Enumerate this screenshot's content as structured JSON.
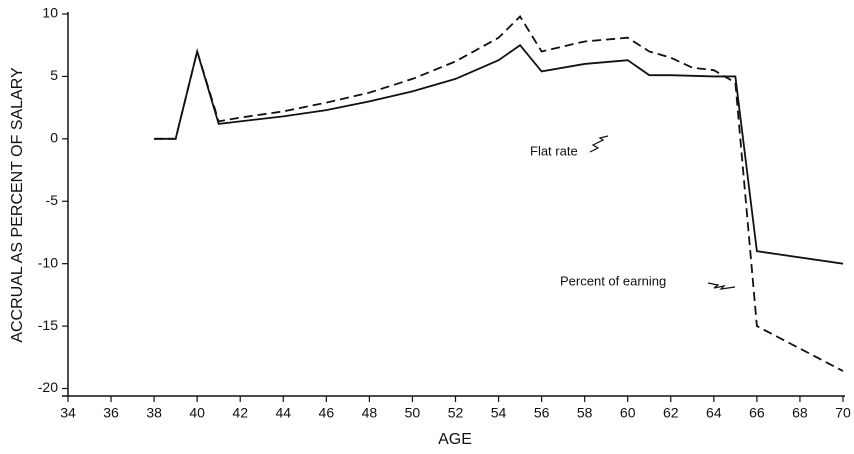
{
  "chart_data": {
    "type": "line",
    "x_label": "AGE",
    "y_label": "ACCRUAL AS PERCENT OF SALARY",
    "x": [
      38,
      39,
      40,
      41,
      42,
      44,
      46,
      48,
      50,
      52,
      54,
      55,
      56,
      58,
      60,
      61,
      62,
      63,
      64,
      65,
      66,
      70
    ],
    "series": [
      {
        "name": "Flat rate",
        "color": "#111111",
        "dash": false,
        "values": [
          0,
          0,
          7,
          1.2,
          1.4,
          1.8,
          2.3,
          3,
          3.8,
          4.8,
          6.3,
          7.5,
          5.4,
          6,
          6.3,
          5.1,
          5.1,
          5.05,
          5,
          5,
          -9,
          -10
        ]
      },
      {
        "name": "Percent of earning",
        "color": "#111111",
        "dash": true,
        "values": [
          0,
          0,
          7,
          1.4,
          1.7,
          2.2,
          2.9,
          3.7,
          4.8,
          6.2,
          8.1,
          9.8,
          7,
          7.8,
          8.1,
          7,
          6.5,
          5.7,
          5.5,
          4.5,
          -15,
          -18.6
        ]
      }
    ],
    "xlim": [
      34,
      70
    ],
    "xticks": [
      34,
      36,
      38,
      40,
      42,
      44,
      46,
      48,
      50,
      52,
      54,
      56,
      58,
      60,
      62,
      64,
      66,
      68,
      70
    ],
    "ylim": [
      -20.6,
      10
    ],
    "yticks": [
      10,
      5,
      0,
      -5,
      -10,
      -15,
      -20
    ],
    "grid": false
  }
}
